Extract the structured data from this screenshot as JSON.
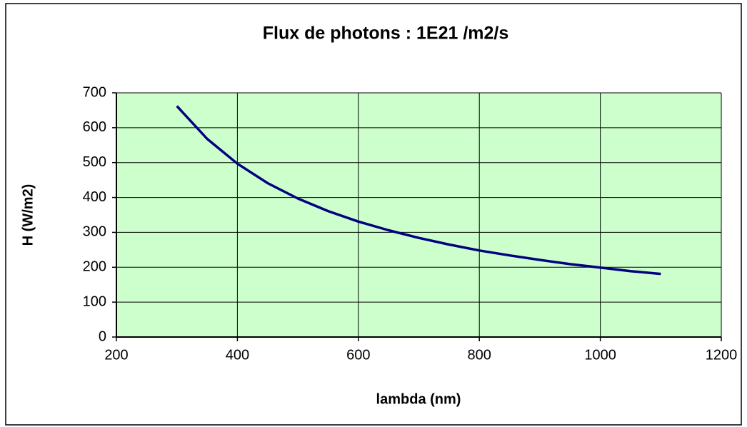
{
  "chart_data": {
    "type": "line",
    "title": "Flux de photons : 1E21 /m2/s",
    "x_label": "lambda (nm)",
    "y_label": "H (W/m2)",
    "x": [
      300,
      350,
      400,
      450,
      500,
      550,
      600,
      650,
      700,
      750,
      800,
      850,
      900,
      950,
      1000,
      1050,
      1100
    ],
    "series": [
      {
        "name": "H",
        "color": "#000080",
        "values": [
          662,
          568,
          497,
          441,
          397,
          361,
          331,
          306,
          284,
          265,
          248,
          234,
          221,
          209,
          199,
          189,
          181
        ]
      }
    ],
    "xlim": [
      200,
      1200
    ],
    "xticks": [
      200,
      400,
      600,
      800,
      1000,
      1200
    ],
    "ylim": [
      0,
      700
    ],
    "yticks": [
      0,
      100,
      200,
      300,
      400,
      500,
      600,
      700
    ],
    "grid": true,
    "plot_background": "#ccffcc"
  }
}
